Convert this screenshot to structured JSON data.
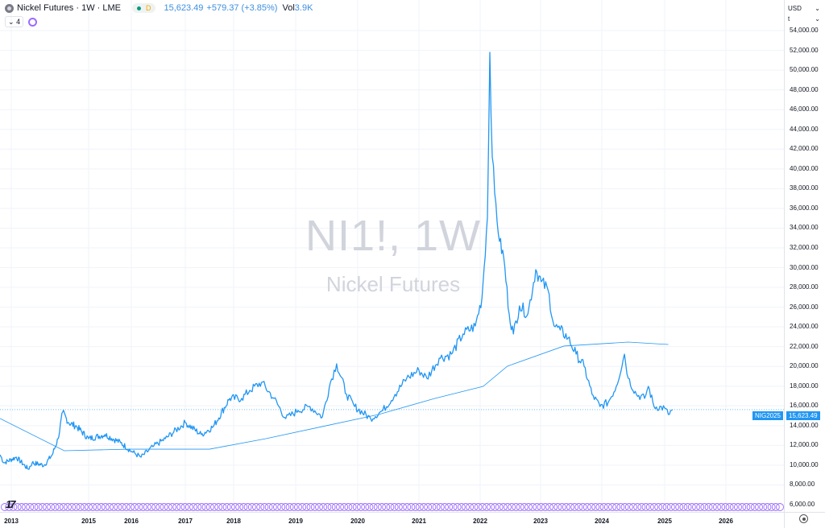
{
  "header": {
    "title": "Nickel Futures · 1W · LME",
    "market_status": "D",
    "last": "15,623.49",
    "change": "+579.37 (+3.85%)",
    "vol_label": "Vol",
    "vol_value": "3.9K",
    "indicators_count": "4"
  },
  "axis_controls": {
    "currency": "USD",
    "unit": "t"
  },
  "watermark": {
    "line1": "NI1!, 1W",
    "line2": "Nickel Futures"
  },
  "price_tag": {
    "symbol": "NIG2025",
    "value": "15,623.49"
  },
  "colors": {
    "price": "#2196f3",
    "ma": "#2196f3",
    "events": "#9c6bff",
    "tag": "#2196f3"
  },
  "chart_data": {
    "type": "line",
    "title": "",
    "xlabel": "",
    "ylabel": "",
    "ylim": [
      5000,
      55000
    ],
    "y_ticks": [
      "6,000.00",
      "8,000.00",
      "10,000.00",
      "12,000.00",
      "14,000.00",
      "16,000.00",
      "18,000.00",
      "20,000.00",
      "22,000.00",
      "24,000.00",
      "26,000.00",
      "28,000.00",
      "30,000.00",
      "32,000.00",
      "34,000.00",
      "36,000.00",
      "38,000.00",
      "40,000.00",
      "42,000.00",
      "44,000.00",
      "46,000.00",
      "48,000.00",
      "50,000.00",
      "52,000.00",
      "54,000.00"
    ],
    "y_tick_values": [
      6000,
      8000,
      10000,
      12000,
      14000,
      16000,
      18000,
      20000,
      22000,
      24000,
      26000,
      28000,
      30000,
      32000,
      34000,
      36000,
      38000,
      40000,
      42000,
      44000,
      46000,
      48000,
      50000,
      52000,
      54000
    ],
    "x_ticks": [
      "2013",
      "2015",
      "2016",
      "2017",
      "2018",
      "2019",
      "2020",
      "2021",
      "2022",
      "2023",
      "2024",
      "2025",
      "2026"
    ],
    "grid": true,
    "series": [
      {
        "name": "NI1! close",
        "x": [
          2012.71,
          2012.81,
          2013.13,
          2013.44,
          2013.54,
          2013.85,
          2014.06,
          2014.21,
          2014.33,
          2014.48,
          2014.69,
          2015.0,
          2015.38,
          2015.75,
          2016.03,
          2016.18,
          2016.4,
          2016.63,
          2017.0,
          2017.33,
          2017.58,
          2017.92,
          2018.13,
          2018.26,
          2018.45,
          2018.65,
          2018.84,
          2019.04,
          2019.23,
          2019.43,
          2019.56,
          2019.66,
          2019.82,
          2019.95,
          2020.21,
          2020.41,
          2020.61,
          2020.8,
          2021.0,
          2021.13,
          2021.33,
          2021.53,
          2021.72,
          2021.92,
          2022.03,
          2022.12,
          2022.16,
          2022.2,
          2022.24,
          2022.32,
          2022.39,
          2022.48,
          2022.55,
          2022.65,
          2022.79,
          2022.92,
          2023.01,
          2023.12,
          2023.22,
          2023.32,
          2023.45,
          2023.58,
          2023.71,
          2023.84,
          2023.97,
          2024.1,
          2024.23,
          2024.36,
          2024.42,
          2024.55,
          2024.68,
          2024.74,
          2024.83,
          2025.0,
          2025.06,
          2025.13
        ],
        "values": [
          11050,
          10240,
          10810,
          9590,
          10240,
          9990,
          11050,
          12680,
          15370,
          14310,
          13910,
          12680,
          13090,
          12280,
          11300,
          10810,
          11870,
          12680,
          14310,
          13090,
          13910,
          16760,
          16760,
          17570,
          18390,
          16760,
          14720,
          15540,
          15940,
          14880,
          18390,
          20260,
          17170,
          15940,
          14720,
          15540,
          17170,
          18800,
          19610,
          18800,
          20830,
          21240,
          23280,
          24090,
          26950,
          35100,
          51800,
          41210,
          37540,
          32650,
          31020,
          25320,
          23280,
          26130,
          25320,
          29800,
          28580,
          27760,
          24090,
          23690,
          22870,
          21240,
          20020,
          17170,
          15940,
          16350,
          17980,
          21240,
          18800,
          17170,
          16760,
          17980,
          15940,
          15780,
          15130,
          15623
        ]
      },
      {
        "name": "Moving average",
        "x": [
          2012.71,
          2014.37,
          2015.94,
          2017.5,
          2018.52,
          2019.43,
          2020.34,
          2021.26,
          2022.05,
          2022.45,
          2023.38,
          2024.42,
          2025.06
        ],
        "values": [
          14720,
          11460,
          11620,
          11620,
          12680,
          13910,
          15130,
          16760,
          17980,
          20020,
          22060,
          22460,
          22220
        ]
      }
    ],
    "current_price_line": 15623.49
  }
}
